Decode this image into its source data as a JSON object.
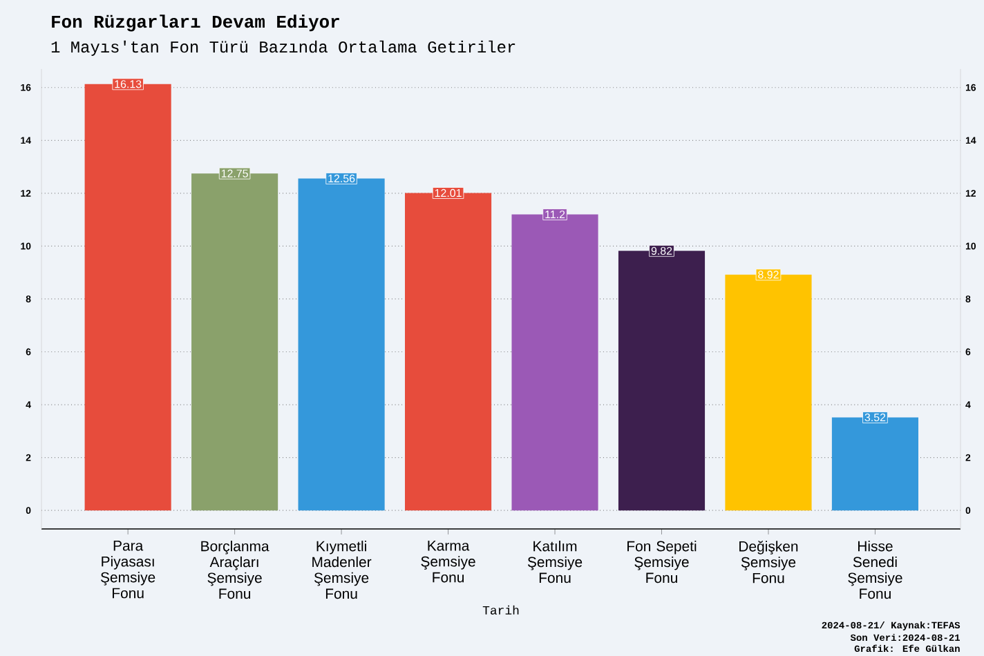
{
  "chart_data": {
    "type": "bar",
    "title": "Fon Rüzgarları Devam Ediyor",
    "subtitle": "1 Mayıs'tan Fon Türü Bazında Ortalama Getiriler",
    "xlabel": "Tarih",
    "categories": [
      "Para Piyasası Şemsiye Fonu",
      "Borçlanma Araçları Şemsiye Fonu",
      "Kıymetli Madenler Şemsiye Fonu",
      "Karma Şemsiye Fonu",
      "Katılım Şemsiye Fonu",
      "Fon Sepeti Şemsiye Fonu",
      "Değişken Şemsiye Fonu",
      "Hisse Senedi Şemsiye Fonu"
    ],
    "values": [
      16.13,
      12.75,
      12.56,
      12.01,
      11.2,
      9.82,
      8.92,
      3.52
    ],
    "colors": [
      "#e74c3c",
      "#8aa16b",
      "#3498db",
      "#e74c3c",
      "#9b59b6",
      "#3d1f4e",
      "#ffc300",
      "#3498db"
    ],
    "ylim": [
      -0.7,
      16.7
    ],
    "yticks": [
      0,
      2,
      4,
      6,
      8,
      10,
      12,
      14,
      16
    ],
    "y2lim": [
      -0.7,
      16.7
    ],
    "y2ticks": [
      0,
      2,
      4,
      6,
      8,
      10,
      12,
      14,
      16
    ],
    "grid": "y",
    "data_labels": true,
    "annotations": [
      "2024-08-21/ Kaynak:TEFAS",
      "Son Veri:2024-08-21",
      "Grafik: Efe Gülkan"
    ]
  }
}
